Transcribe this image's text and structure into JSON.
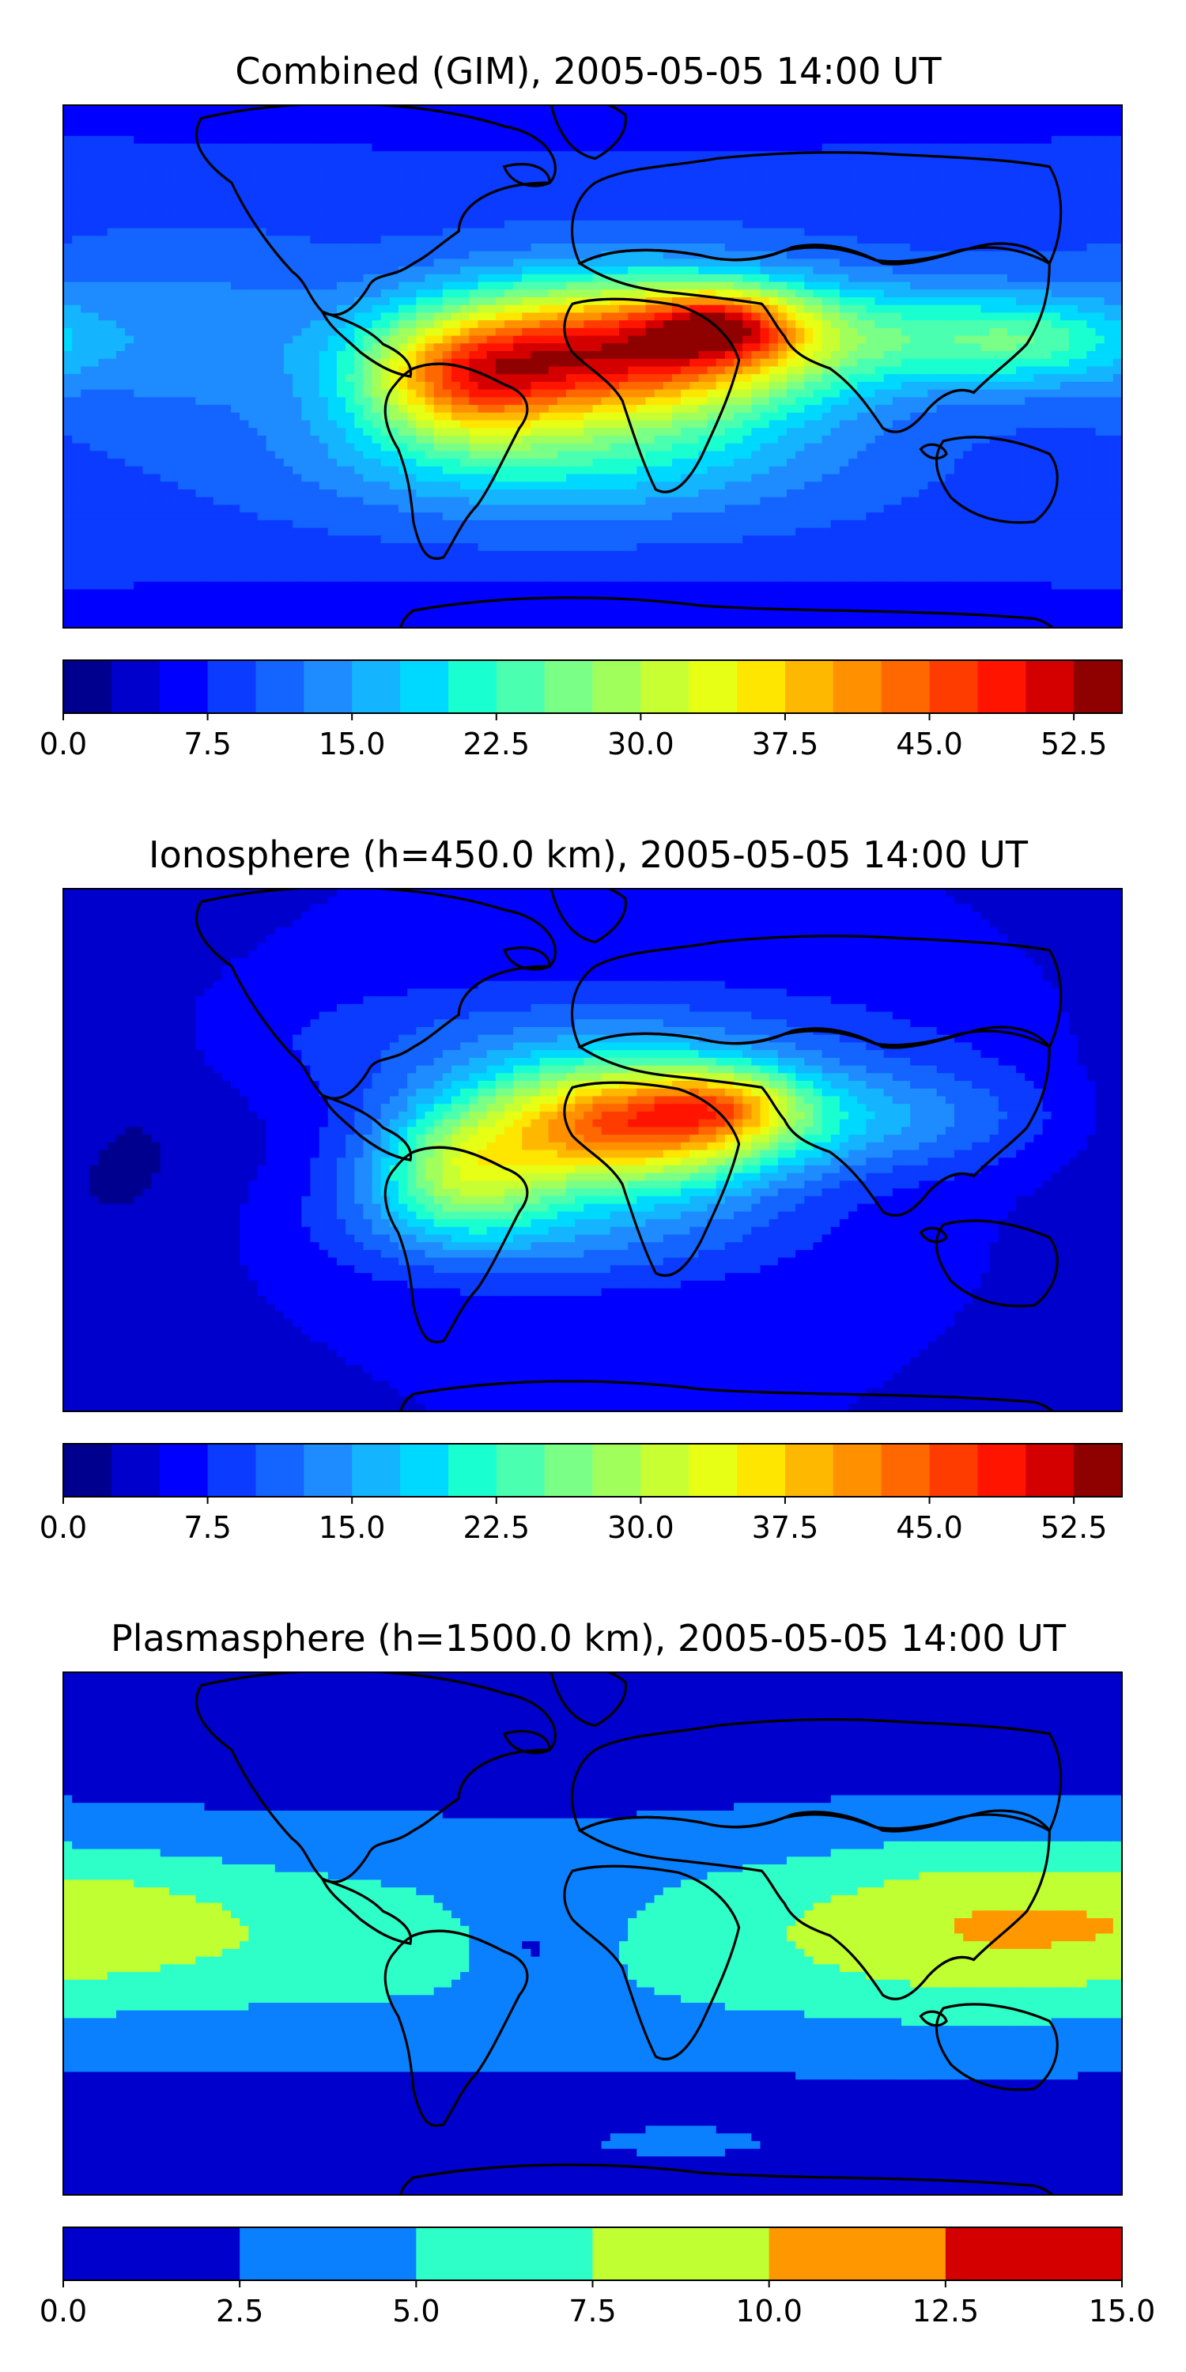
{
  "palette": {
    "map_outline": "#000000",
    "land_outline": "#000000",
    "background": "#ffffff"
  },
  "chart_data": [
    {
      "type": "heatmap",
      "title": "Combined (GIM), 2005-05-05 14:00 UT",
      "colorbar": {
        "levels": [
          0,
          2.5,
          5,
          7.5,
          10,
          12.5,
          15,
          17.5,
          20,
          22.5,
          25,
          27.5,
          30,
          32.5,
          35,
          37.5,
          40,
          42.5,
          45,
          47.5,
          50,
          52.5,
          55
        ],
        "colors": [
          "#00008f",
          "#0000cc",
          "#0000ff",
          "#0a3bff",
          "#1464ff",
          "#1e8cff",
          "#14b4ff",
          "#00d9ff",
          "#1affd0",
          "#4affb0",
          "#7aff87",
          "#a1ff5c",
          "#c8ff32",
          "#e6ff14",
          "#ffe600",
          "#ffb800",
          "#ff9000",
          "#ff6800",
          "#ff3c00",
          "#ff1400",
          "#d40000",
          "#8f0000"
        ],
        "tick_labels": [
          "0.0",
          "7.5",
          "15.0",
          "22.5",
          "30.0",
          "37.5",
          "45.0",
          "52.5"
        ],
        "tick_values": [
          0,
          7.5,
          15,
          22.5,
          30,
          37.5,
          45,
          52.5
        ],
        "vmin": 0,
        "vmax": 55
      },
      "field": {
        "background": 9,
        "features": [
          {
            "lon": 10,
            "lat": 5,
            "slon": 45,
            "slat": 16,
            "amp": 40
          },
          {
            "lon": -45,
            "lat": -5,
            "slon": 25,
            "slat": 14,
            "amp": 22
          },
          {
            "lon": 45,
            "lat": 14,
            "slon": 18,
            "slat": 8,
            "amp": 18
          },
          {
            "lon": 100,
            "lat": 10,
            "slon": 40,
            "slat": 12,
            "amp": 10
          },
          {
            "lon": 150,
            "lat": 8,
            "slon": 25,
            "slat": 10,
            "amp": 10
          },
          {
            "lon": -10,
            "lat": -30,
            "slon": 60,
            "slat": 14,
            "amp": 10
          },
          {
            "lon": -140,
            "lat": 10,
            "slon": 40,
            "slat": 20,
            "amp": 5
          },
          {
            "lon": 0,
            "lat": -80,
            "slon": 180,
            "slat": 8,
            "amp": -4
          },
          {
            "lon": 0,
            "lat": 80,
            "slon": 180,
            "slat": 8,
            "amp": -3
          }
        ]
      }
    },
    {
      "type": "heatmap",
      "title": "Ionosphere  (h=450.0 km), 2005-05-05 14:00 UT",
      "colorbar": {
        "levels": [
          0,
          2.5,
          5,
          7.5,
          10,
          12.5,
          15,
          17.5,
          20,
          22.5,
          25,
          27.5,
          30,
          32.5,
          35,
          37.5,
          40,
          42.5,
          45,
          47.5,
          50,
          52.5,
          55
        ],
        "colors": [
          "#00008f",
          "#0000cc",
          "#0000ff",
          "#0a3bff",
          "#1464ff",
          "#1e8cff",
          "#14b4ff",
          "#00d9ff",
          "#1affd0",
          "#4affb0",
          "#7aff87",
          "#a1ff5c",
          "#c8ff32",
          "#e6ff14",
          "#ffe600",
          "#ffb800",
          "#ff9000",
          "#ff6800",
          "#ff3c00",
          "#ff1400",
          "#d40000",
          "#8f0000"
        ],
        "tick_labels": [
          "0.0",
          "7.5",
          "15.0",
          "22.5",
          "30.0",
          "37.5",
          "45.0",
          "52.5"
        ],
        "tick_values": [
          0,
          7.5,
          15,
          22.5,
          30,
          37.5,
          45,
          52.5
        ],
        "vmin": 0,
        "vmax": 55
      },
      "field": {
        "background": 5,
        "features": [
          {
            "lon": 12,
            "lat": 8,
            "slon": 38,
            "slat": 14,
            "amp": 38
          },
          {
            "lon": -45,
            "lat": -8,
            "slon": 22,
            "slat": 14,
            "amp": 18
          },
          {
            "lon": 45,
            "lat": 15,
            "slon": 18,
            "slat": 8,
            "amp": 12
          },
          {
            "lon": 100,
            "lat": 10,
            "slon": 40,
            "slat": 12,
            "amp": 8
          },
          {
            "lon": -10,
            "lat": -25,
            "slon": 55,
            "slat": 14,
            "amp": 8
          },
          {
            "lon": 0,
            "lat": 35,
            "slon": 80,
            "slat": 15,
            "amp": 6
          },
          {
            "lon": -160,
            "lat": 0,
            "slon": 30,
            "slat": 40,
            "amp": -3
          }
        ]
      }
    },
    {
      "type": "heatmap",
      "title": "Plasmasphere (h=1500.0 km), 2005-05-05 14:00 UT",
      "colorbar": {
        "levels": [
          0,
          2.5,
          5,
          7.5,
          10,
          12.5,
          15
        ],
        "colors": [
          "#0000cc",
          "#0a80ff",
          "#2effc8",
          "#c0ff32",
          "#ff9800",
          "#d40000"
        ],
        "tick_labels": [
          "0.0",
          "2.5",
          "5.0",
          "7.5",
          "10.0",
          "12.5",
          "15.0"
        ],
        "tick_values": [
          0,
          2.5,
          5,
          7.5,
          10,
          12.5,
          15
        ],
        "vmin": 0,
        "vmax": 15
      },
      "field": {
        "background": 1.2,
        "features": [
          {
            "lon": 0,
            "lat": -3,
            "slon": 500,
            "slat": 26,
            "amp": 5.0
          },
          {
            "lon": 130,
            "lat": 5,
            "slon": 45,
            "slat": 20,
            "amp": 3.8
          },
          {
            "lon": -160,
            "lat": 5,
            "slon": 40,
            "slat": 15,
            "amp": 2.4
          },
          {
            "lon": -15,
            "lat": 0,
            "slon": 25,
            "slat": 18,
            "amp": -2.2
          },
          {
            "lon": -21,
            "lat": -4,
            "slon": 3,
            "slat": 3,
            "amp": -2.5
          },
          {
            "lon": 30,
            "lat": -68,
            "slon": 25,
            "slat": 4,
            "amp": 1.9
          }
        ]
      }
    }
  ]
}
